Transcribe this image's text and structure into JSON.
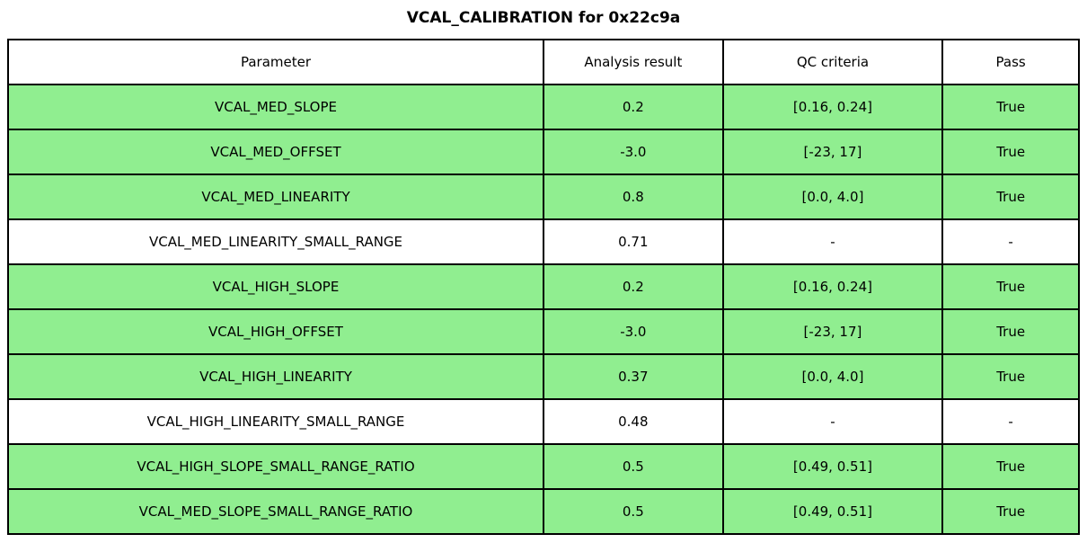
{
  "title": "VCAL_CALIBRATION for 0x22c9a",
  "chart_data": {
    "type": "table",
    "title": "VCAL_CALIBRATION for 0x22c9a",
    "columns": [
      "Parameter",
      "Analysis result",
      "QC criteria",
      "Pass"
    ],
    "rows": [
      {
        "parameter": "VCAL_MED_SLOPE",
        "analysis_result": "0.2",
        "qc_criteria": "[0.16, 0.24]",
        "pass": "True",
        "highlighted": true
      },
      {
        "parameter": "VCAL_MED_OFFSET",
        "analysis_result": "-3.0",
        "qc_criteria": "[-23, 17]",
        "pass": "True",
        "highlighted": true
      },
      {
        "parameter": "VCAL_MED_LINEARITY",
        "analysis_result": "0.8",
        "qc_criteria": "[0.0, 4.0]",
        "pass": "True",
        "highlighted": true
      },
      {
        "parameter": "VCAL_MED_LINEARITY_SMALL_RANGE",
        "analysis_result": "0.71",
        "qc_criteria": "-",
        "pass": "-",
        "highlighted": false
      },
      {
        "parameter": "VCAL_HIGH_SLOPE",
        "analysis_result": "0.2",
        "qc_criteria": "[0.16, 0.24]",
        "pass": "True",
        "highlighted": true
      },
      {
        "parameter": "VCAL_HIGH_OFFSET",
        "analysis_result": "-3.0",
        "qc_criteria": "[-23, 17]",
        "pass": "True",
        "highlighted": true
      },
      {
        "parameter": "VCAL_HIGH_LINEARITY",
        "analysis_result": "0.37",
        "qc_criteria": "[0.0, 4.0]",
        "pass": "True",
        "highlighted": true
      },
      {
        "parameter": "VCAL_HIGH_LINEARITY_SMALL_RANGE",
        "analysis_result": "0.48",
        "qc_criteria": "-",
        "pass": "-",
        "highlighted": false
      },
      {
        "parameter": "VCAL_HIGH_SLOPE_SMALL_RANGE_RATIO",
        "analysis_result": "0.5",
        "qc_criteria": "[0.49, 0.51]",
        "pass": "True",
        "highlighted": true
      },
      {
        "parameter": "VCAL_MED_SLOPE_SMALL_RANGE_RATIO",
        "analysis_result": "0.5",
        "qc_criteria": "[0.49, 0.51]",
        "pass": "True",
        "highlighted": true
      }
    ],
    "colors": {
      "pass_row_background": "#90ee90",
      "neutral_row_background": "#ffffff",
      "border": "#000000",
      "text": "#000000"
    }
  }
}
